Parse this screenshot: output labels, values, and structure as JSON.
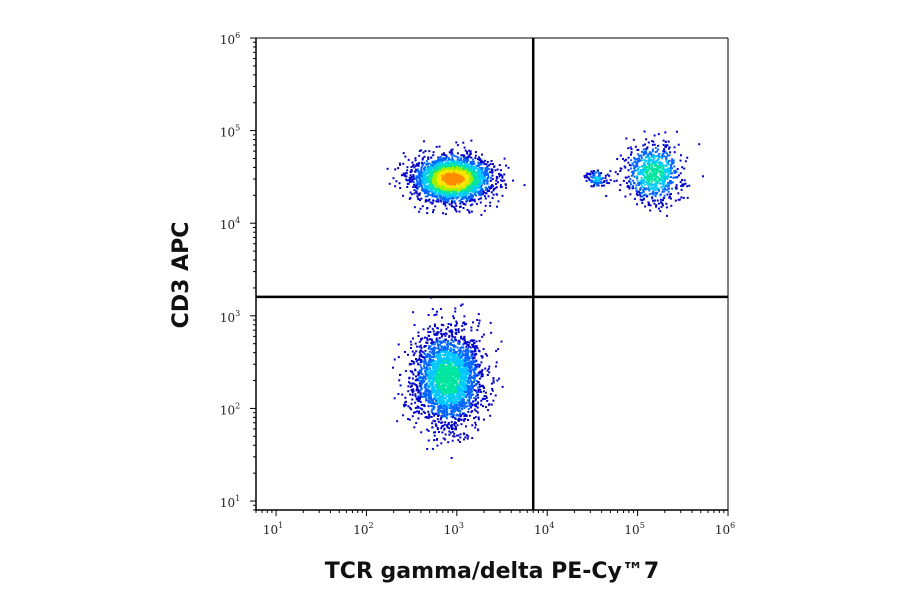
{
  "chart_data": {
    "type": "scatter",
    "subtype": "flow-cytometry-density-dot-plot",
    "xlabel": "TCR gamma/delta PE-Cy™7",
    "ylabel": "CD3 APC",
    "x_scale": "log",
    "y_scale": "log",
    "xlim": [
      6,
      1000000
    ],
    "ylim": [
      8,
      1000000
    ],
    "x_ticks": [
      {
        "base": "10",
        "exp": "1",
        "value": 10
      },
      {
        "base": "10",
        "exp": "2",
        "value": 100
      },
      {
        "base": "10",
        "exp": "3",
        "value": 1000
      },
      {
        "base": "10",
        "exp": "4",
        "value": 10000
      },
      {
        "base": "10",
        "exp": "5",
        "value": 100000
      },
      {
        "base": "10",
        "exp": "6",
        "value": 1000000
      }
    ],
    "y_ticks": [
      {
        "base": "10",
        "exp": "1",
        "value": 10
      },
      {
        "base": "10",
        "exp": "2",
        "value": 100
      },
      {
        "base": "10",
        "exp": "3",
        "value": 1000
      },
      {
        "base": "10",
        "exp": "4",
        "value": 10000
      },
      {
        "base": "10",
        "exp": "5",
        "value": 100000
      },
      {
        "base": "10",
        "exp": "6",
        "value": 1000000
      }
    ],
    "quadrant_gates": {
      "x": 7000,
      "y": 1600
    },
    "grid": false,
    "legend": "none",
    "density_colormap": [
      "#0000c8",
      "#0064ff",
      "#00c8ff",
      "#00e6a0",
      "#a0f000",
      "#ffe600",
      "#ff8c00",
      "#ff1e00"
    ],
    "populations": [
      {
        "center": [
          800,
          210
        ],
        "spread_decades": [
          0.19,
          0.25
        ],
        "relative_count": 2600,
        "peak_density": 0.55
      },
      {
        "center": [
          900,
          30000
        ],
        "spread_decades": [
          0.21,
          0.12
        ],
        "relative_count": 2600,
        "peak_density": 1.0
      },
      {
        "center": [
          150000,
          35000
        ],
        "spread_decades": [
          0.16,
          0.16
        ],
        "relative_count": 700,
        "peak_density": 0.55
      },
      {
        "center": [
          35000,
          30000
        ],
        "spread_decades": [
          0.06,
          0.05
        ],
        "relative_count": 90,
        "peak_density": 0.35
      }
    ]
  }
}
